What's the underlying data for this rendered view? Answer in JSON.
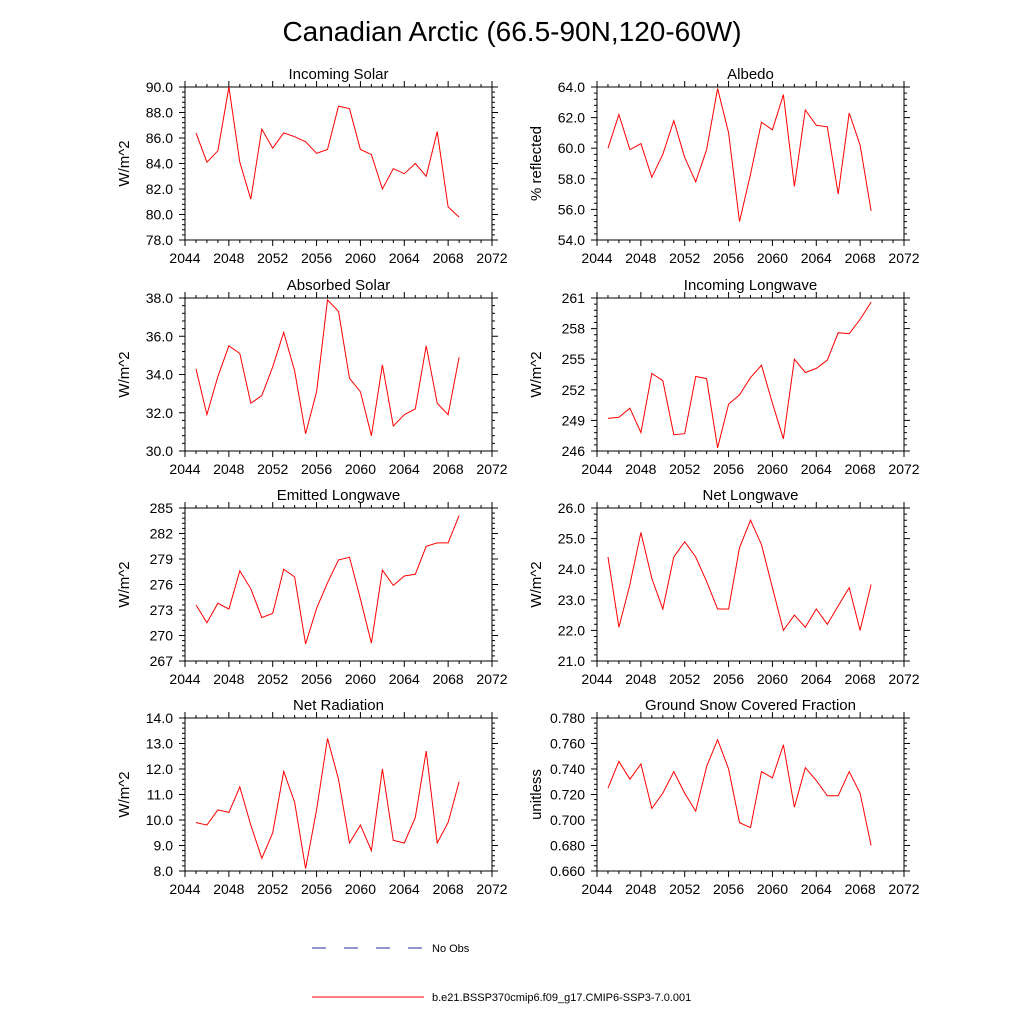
{
  "figure": {
    "title": "Canadian Arctic (66.5-90N,120-60W)",
    "series_color": "#ff0000",
    "obs_color": "#2a2aa5",
    "legend": [
      {
        "label": "No Obs",
        "style": "dashed",
        "color": "#2a2aa5"
      },
      {
        "label": "b.e21.BSSP370cmip6.f09_g17.CMIP6-SSP3-7.0.001",
        "style": "solid",
        "color": "#ff0000"
      }
    ]
  },
  "chart_data": [
    {
      "type": "line",
      "title": "Incoming Solar",
      "ylabel": "W/m^2",
      "xlim": [
        2044,
        2072
      ],
      "ylim": [
        78.0,
        90.0
      ],
      "xticks": [
        2044,
        2048,
        2052,
        2056,
        2060,
        2064,
        2068,
        2072
      ],
      "yticks": [
        "78.0",
        "80.0",
        "82.0",
        "84.0",
        "86.0",
        "88.0",
        "90.0"
      ],
      "x": [
        2045,
        2046,
        2047,
        2048,
        2049,
        2050,
        2051,
        2052,
        2053,
        2054,
        2055,
        2056,
        2057,
        2058,
        2059,
        2060,
        2061,
        2062,
        2063,
        2064,
        2065,
        2066,
        2067,
        2068,
        2069
      ],
      "series": [
        {
          "name": "b.e21.BSSP370cmip6.f09_g17.CMIP6-SSP3-7.0.001",
          "values": [
            86.4,
            84.1,
            85.0,
            90.0,
            84.1,
            81.2,
            86.7,
            85.2,
            86.4,
            86.1,
            85.7,
            84.8,
            85.1,
            88.5,
            88.3,
            85.1,
            84.7,
            82.0,
            83.6,
            83.2,
            84.0,
            83.0,
            86.5,
            80.6,
            79.8
          ]
        }
      ]
    },
    {
      "type": "line",
      "title": "Albedo",
      "ylabel": "% reflected",
      "xlim": [
        2044,
        2072
      ],
      "ylim": [
        54.0,
        64.0
      ],
      "xticks": [
        2044,
        2048,
        2052,
        2056,
        2060,
        2064,
        2068,
        2072
      ],
      "yticks": [
        "54.0",
        "56.0",
        "58.0",
        "60.0",
        "62.0",
        "64.0"
      ],
      "x": [
        2045,
        2046,
        2047,
        2048,
        2049,
        2050,
        2051,
        2052,
        2053,
        2054,
        2055,
        2056,
        2057,
        2058,
        2059,
        2060,
        2061,
        2062,
        2063,
        2064,
        2065,
        2066,
        2067,
        2068,
        2069
      ],
      "series": [
        {
          "name": "b.e21.BSSP370cmip6.f09_g17.CMIP6-SSP3-7.0.001",
          "values": [
            60.0,
            62.2,
            59.9,
            60.3,
            58.1,
            59.6,
            61.8,
            59.4,
            57.8,
            59.9,
            63.9,
            61.0,
            55.2,
            58.3,
            61.7,
            61.2,
            63.5,
            57.5,
            62.5,
            61.5,
            61.4,
            57.0,
            62.3,
            60.2,
            55.9
          ]
        }
      ]
    },
    {
      "type": "line",
      "title": "Absorbed Solar",
      "ylabel": "W/m^2",
      "xlim": [
        2044,
        2072
      ],
      "ylim": [
        30.0,
        38.0
      ],
      "xticks": [
        2044,
        2048,
        2052,
        2056,
        2060,
        2064,
        2068,
        2072
      ],
      "yticks": [
        "30.0",
        "32.0",
        "34.0",
        "36.0",
        "38.0"
      ],
      "x": [
        2045,
        2046,
        2047,
        2048,
        2049,
        2050,
        2051,
        2052,
        2053,
        2054,
        2055,
        2056,
        2057,
        2058,
        2059,
        2060,
        2061,
        2062,
        2063,
        2064,
        2065,
        2066,
        2067,
        2068,
        2069
      ],
      "series": [
        {
          "name": "b.e21.BSSP370cmip6.f09_g17.CMIP6-SSP3-7.0.001",
          "values": [
            34.3,
            31.9,
            33.9,
            35.5,
            35.1,
            32.5,
            32.9,
            34.4,
            36.2,
            34.2,
            30.9,
            33.1,
            37.9,
            37.3,
            33.8,
            33.1,
            30.8,
            34.5,
            31.3,
            31.9,
            32.2,
            35.5,
            32.5,
            31.9,
            34.9
          ]
        }
      ]
    },
    {
      "type": "line",
      "title": "Incoming Longwave",
      "ylabel": "W/m^2",
      "xlim": [
        2044,
        2072
      ],
      "ylim": [
        246,
        261
      ],
      "xticks": [
        2044,
        2048,
        2052,
        2056,
        2060,
        2064,
        2068,
        2072
      ],
      "yticks": [
        "246",
        "249",
        "252",
        "255",
        "258",
        "261"
      ],
      "x": [
        2045,
        2046,
        2047,
        2048,
        2049,
        2050,
        2051,
        2052,
        2053,
        2054,
        2055,
        2056,
        2057,
        2058,
        2059,
        2060,
        2061,
        2062,
        2063,
        2064,
        2065,
        2066,
        2067,
        2068,
        2069
      ],
      "series": [
        {
          "name": "b.e21.BSSP370cmip6.f09_g17.CMIP6-SSP3-7.0.001",
          "values": [
            249.2,
            249.3,
            250.2,
            247.8,
            253.6,
            252.9,
            247.6,
            247.7,
            253.3,
            253.1,
            246.3,
            250.6,
            251.5,
            253.2,
            254.4,
            250.7,
            247.2,
            255.0,
            253.7,
            254.1,
            254.9,
            257.6,
            257.5,
            258.9,
            260.6
          ]
        }
      ]
    },
    {
      "type": "line",
      "title": "Emitted Longwave",
      "ylabel": "W/m^2",
      "xlim": [
        2044,
        2072
      ],
      "ylim": [
        267,
        285
      ],
      "xticks": [
        2044,
        2048,
        2052,
        2056,
        2060,
        2064,
        2068,
        2072
      ],
      "yticks": [
        "267",
        "270",
        "273",
        "276",
        "279",
        "282",
        "285"
      ],
      "x": [
        2045,
        2046,
        2047,
        2048,
        2049,
        2050,
        2051,
        2052,
        2053,
        2054,
        2055,
        2056,
        2057,
        2058,
        2059,
        2060,
        2061,
        2062,
        2063,
        2064,
        2065,
        2066,
        2067,
        2068,
        2069
      ],
      "series": [
        {
          "name": "b.e21.BSSP370cmip6.f09_g17.CMIP6-SSP3-7.0.001",
          "values": [
            273.6,
            271.5,
            273.8,
            273.1,
            277.6,
            275.5,
            272.1,
            272.6,
            277.8,
            276.9,
            269.0,
            273.2,
            276.2,
            278.9,
            279.2,
            274.3,
            269.1,
            277.7,
            275.9,
            277.0,
            277.2,
            280.5,
            280.9,
            280.9,
            284.1
          ]
        }
      ]
    },
    {
      "type": "line",
      "title": "Net Longwave",
      "ylabel": "W/m^2",
      "xlim": [
        2044,
        2072
      ],
      "ylim": [
        21.0,
        26.0
      ],
      "xticks": [
        2044,
        2048,
        2052,
        2056,
        2060,
        2064,
        2068,
        2072
      ],
      "yticks": [
        "21.0",
        "22.0",
        "23.0",
        "24.0",
        "25.0",
        "26.0"
      ],
      "x": [
        2045,
        2046,
        2047,
        2048,
        2049,
        2050,
        2051,
        2052,
        2053,
        2054,
        2055,
        2056,
        2057,
        2058,
        2059,
        2060,
        2061,
        2062,
        2063,
        2064,
        2065,
        2066,
        2067,
        2068,
        2069
      ],
      "series": [
        {
          "name": "b.e21.BSSP370cmip6.f09_g17.CMIP6-SSP3-7.0.001",
          "values": [
            24.4,
            22.1,
            23.5,
            25.2,
            23.7,
            22.7,
            24.4,
            24.9,
            24.4,
            23.6,
            22.7,
            22.7,
            24.7,
            25.6,
            24.8,
            23.4,
            22.0,
            22.5,
            22.1,
            22.7,
            22.2,
            22.8,
            23.4,
            22.0,
            23.5
          ]
        }
      ]
    },
    {
      "type": "line",
      "title": "Net Radiation",
      "ylabel": "W/m^2",
      "xlim": [
        2044,
        2072
      ],
      "ylim": [
        8.0,
        14.0
      ],
      "xticks": [
        2044,
        2048,
        2052,
        2056,
        2060,
        2064,
        2068,
        2072
      ],
      "yticks": [
        "8.0",
        "9.0",
        "10.0",
        "11.0",
        "12.0",
        "13.0",
        "14.0"
      ],
      "x": [
        2045,
        2046,
        2047,
        2048,
        2049,
        2050,
        2051,
        2052,
        2053,
        2054,
        2055,
        2056,
        2057,
        2058,
        2059,
        2060,
        2061,
        2062,
        2063,
        2064,
        2065,
        2066,
        2067,
        2068,
        2069
      ],
      "series": [
        {
          "name": "b.e21.BSSP370cmip6.f09_g17.CMIP6-SSP3-7.0.001",
          "values": [
            9.9,
            9.8,
            10.4,
            10.3,
            11.3,
            9.8,
            8.5,
            9.5,
            11.9,
            10.7,
            8.1,
            10.4,
            13.2,
            11.6,
            9.1,
            9.8,
            8.8,
            12.0,
            9.2,
            9.1,
            10.1,
            12.7,
            9.1,
            9.9,
            11.5
          ]
        }
      ]
    },
    {
      "type": "line",
      "title": "Ground Snow Covered Fraction",
      "ylabel": "unitless",
      "xlim": [
        2044,
        2072
      ],
      "ylim": [
        0.66,
        0.78
      ],
      "xticks": [
        2044,
        2048,
        2052,
        2056,
        2060,
        2064,
        2068,
        2072
      ],
      "yticks": [
        "0.660",
        "0.680",
        "0.700",
        "0.720",
        "0.740",
        "0.760",
        "0.780"
      ],
      "x": [
        2045,
        2046,
        2047,
        2048,
        2049,
        2050,
        2051,
        2052,
        2053,
        2054,
        2055,
        2056,
        2057,
        2058,
        2059,
        2060,
        2061,
        2062,
        2063,
        2064,
        2065,
        2066,
        2067,
        2068,
        2069
      ],
      "series": [
        {
          "name": "b.e21.BSSP370cmip6.f09_g17.CMIP6-SSP3-7.0.001",
          "values": [
            0.725,
            0.746,
            0.732,
            0.744,
            0.709,
            0.721,
            0.738,
            0.721,
            0.707,
            0.742,
            0.763,
            0.74,
            0.698,
            0.694,
            0.738,
            0.733,
            0.759,
            0.71,
            0.741,
            0.731,
            0.719,
            0.719,
            0.738,
            0.721,
            0.68
          ]
        }
      ]
    }
  ]
}
